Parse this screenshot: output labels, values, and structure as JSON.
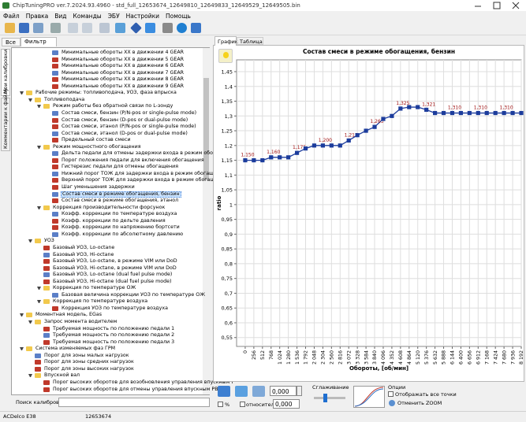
{
  "window": {
    "title": "ChipTuningPRO ver.7.2024.93.4960 - std_full_12653674_12649810_12649833_12649529_12649505.bin"
  },
  "menu": [
    "Файл",
    "Правка",
    "Вид",
    "Команды",
    "ЭБУ",
    "Настройки",
    "Помощь"
  ],
  "left_tabs": [
    "Все",
    "Фильтр"
  ],
  "side_tabs": [
    "Мои калибровки",
    "Комментарии к файлу"
  ],
  "tree": [
    {
      "level": 3,
      "label": "Минимальные обороты ХХ в движении 4 GEAR"
    },
    {
      "level": 3,
      "label": "Минимальные обороты ХХ в движении 5 GEAR"
    },
    {
      "level": 3,
      "label": "Минимальные обороты ХХ в движении 6 GEAR"
    },
    {
      "level": 3,
      "label": "Минимальные обороты ХХ в движении 7 GEAR"
    },
    {
      "level": 3,
      "label": "Минимальные обороты ХХ в движении 8 GEAR"
    },
    {
      "level": 3,
      "label": "Минимальные обороты ХХ в движении 9 GEAR"
    },
    {
      "level": 0,
      "label": "Рабочие режимы: топливоподача, УОЗ, фаза впрыска"
    },
    {
      "level": 1,
      "label": "Топливоподача"
    },
    {
      "level": 2,
      "label": "Режим работы без обратной связи по L-зонду"
    },
    {
      "level": 3,
      "label": "Состав смеси, бензин (P/N-pos or single-pulse mode)"
    },
    {
      "level": 3,
      "label": "Состав смеси, бензин (D-pos or dual-pulse mode)"
    },
    {
      "level": 3,
      "label": "Состав смеси, этанол (P/N-pos or single-pulse mode)"
    },
    {
      "level": 3,
      "label": "Состав смеси, этанол (D-pos or dual-pulse mode)"
    },
    {
      "level": 3,
      "label": "Предельный состав смеси"
    },
    {
      "level": 2,
      "label": "Режим мощностного обогащения"
    },
    {
      "level": 3,
      "label": "Дельта педали для отмены задержки входа в режим обогащени"
    },
    {
      "level": 3,
      "label": "Порог положения педали для включения обогащения"
    },
    {
      "level": 3,
      "label": "Гистерезис педали для отмены обогащения"
    },
    {
      "level": 3,
      "label": "Нижний порог ТОЖ для задержки входа в режим обогащения"
    },
    {
      "level": 3,
      "label": "Верхний порог ТОЖ для задержки входа в режим обогащения"
    },
    {
      "level": 3,
      "label": "Шаг уменьшения задержки"
    },
    {
      "level": 3,
      "label": "Состав смеси в режиме обогащения, бензин",
      "selected": true
    },
    {
      "level": 3,
      "label": "Состав смеси в режиме обогащения, этанол"
    },
    {
      "level": 2,
      "label": "Коррекция производительности форсунок"
    },
    {
      "level": 3,
      "label": "Коэфф. коррекции по температуре воздуха"
    },
    {
      "level": 3,
      "label": "Коэфф. коррекции по дельте давления"
    },
    {
      "level": 3,
      "label": "Коэфф. коррекции по напряжению бортсети"
    },
    {
      "level": 3,
      "label": "Коэфф. коррекции по абсолютному давлению"
    },
    {
      "level": 1,
      "label": "УОЗ"
    },
    {
      "level": 2,
      "label": "Базовый УОЗ, Lo-octane"
    },
    {
      "level": 2,
      "label": "Базовый УОЗ, Hi-octane"
    },
    {
      "level": 2,
      "label": "Базовый УОЗ, Lo-octane, в режиме VIM или DoD"
    },
    {
      "level": 2,
      "label": "Базовый УОЗ, Hi-octane, в режиме VIM или DoD"
    },
    {
      "level": 2,
      "label": "Базовый УОЗ, Lo-octane (dual fuel pulse mode)"
    },
    {
      "level": 2,
      "label": "Базовый УОЗ, Hi-octane (dual fuel pulse mode)"
    },
    {
      "level": 2,
      "label": "Коррекция по температуре ОЖ"
    },
    {
      "level": 3,
      "label": "Базовая величина коррекции УОЗ по температуре ОЖ"
    },
    {
      "level": 2,
      "label": "Коррекция по температуре воздуха"
    },
    {
      "level": 3,
      "label": "Коррекция УОЗ по температуре воздуха"
    },
    {
      "level": 0,
      "label": "Моментная модель, EGas"
    },
    {
      "level": 1,
      "label": "Запрос момента водителем"
    },
    {
      "level": 2,
      "label": "Требуемая мощность по положению педали 1"
    },
    {
      "level": 2,
      "label": "Требуемая мощность по положению педали 2"
    },
    {
      "level": 2,
      "label": "Требуемая мощность по положению педали 3"
    },
    {
      "level": 0,
      "label": "Система изменяемых фаз ГРМ"
    },
    {
      "level": 1,
      "label": "Порог для зоны малых нагрузок"
    },
    {
      "level": 1,
      "label": "Порог для зоны средних нагрузок"
    },
    {
      "level": 1,
      "label": "Порог для зоны высоких нагрузок"
    },
    {
      "level": 1,
      "label": "Впускной вал"
    },
    {
      "level": 2,
      "label": "Порог высоких оборотов для возобновления управления впускным Р"
    },
    {
      "level": 2,
      "label": "Порог высоких оборотов для отмены управления впускным РВ"
    }
  ],
  "search_label": "Поиск калибровки",
  "status": [
    "ACDelco E38",
    "12653674"
  ],
  "right_tabs": [
    "График",
    "Таблица"
  ],
  "controls": {
    "value_input": "0,000",
    "percent": "%",
    "relative": "относительно",
    "relative_input": "0,000",
    "smoothing": "Сглаживание",
    "options": "Опции",
    "show_all_points": "Отображать все точки",
    "reset_zoom": "Отменить ZOOM"
  },
  "chart_data": {
    "type": "line",
    "title": "Состав смеси в режиме обогащения, бензин",
    "x_label": "Обороты, [об/мин]",
    "y_label": "ratio",
    "grid": true,
    "x": [
      0,
      256,
      512,
      768,
      1024,
      1280,
      1536,
      1792,
      2048,
      2304,
      2560,
      2816,
      3072,
      3328,
      3584,
      3840,
      4096,
      4352,
      4608,
      4864,
      5120,
      5376,
      5632,
      5888,
      6144,
      6400,
      6656,
      6912,
      7168,
      7424,
      7680,
      7936,
      8192
    ],
    "series": [
      {
        "color": "#1c3c9c",
        "values": [
          1.15,
          1.15,
          1.15,
          1.16,
          1.16,
          1.16,
          1.175,
          1.19,
          1.2,
          1.2,
          1.2,
          1.2,
          1.217,
          1.235,
          1.25,
          1.263,
          1.29,
          1.3,
          1.325,
          1.33,
          1.33,
          1.321,
          1.31,
          1.31,
          1.31,
          1.31,
          1.31,
          1.31,
          1.31,
          1.31,
          1.31,
          1.31,
          1.31
        ],
        "value_labels": [
          "1,150",
          null,
          null,
          "1,160",
          null,
          null,
          "1,175",
          null,
          null,
          "1,200",
          null,
          null,
          "1,217",
          null,
          null,
          "1,263",
          null,
          null,
          "1,325",
          null,
          null,
          "1,321",
          null,
          null,
          "1,310",
          null,
          null,
          "1,310",
          null,
          null,
          "1,310",
          null,
          null
        ]
      }
    ],
    "xlim": [
      -256,
      8192
    ],
    "ylim": [
      0.52,
      1.49
    ],
    "xticks": [
      0,
      256,
      512,
      768,
      {
        "value": 1024,
        "label": "1 024"
      },
      {
        "value": 1280,
        "label": "1 280"
      },
      {
        "value": 1536,
        "label": "1 536"
      },
      {
        "value": 1792,
        "label": "1 792"
      },
      {
        "value": 2048,
        "label": "2 048"
      },
      {
        "value": 2304,
        "label": "2 304"
      },
      {
        "value": 2560,
        "label": "2 560"
      },
      {
        "value": 2816,
        "label": "2 816"
      },
      {
        "value": 3072,
        "label": "3 072"
      },
      {
        "value": 3328,
        "label": "3 328"
      },
      {
        "value": 3584,
        "label": "3 584"
      },
      {
        "value": 3840,
        "label": "3 840"
      },
      {
        "value": 4096,
        "label": "4 096"
      },
      {
        "value": 4352,
        "label": "4 352"
      },
      {
        "value": 4608,
        "label": "4 608"
      },
      {
        "value": 4864,
        "label": "4 864"
      },
      {
        "value": 5120,
        "label": "5 120"
      },
      {
        "value": 5376,
        "label": "5 376"
      },
      {
        "value": 5632,
        "label": "5 632"
      },
      {
        "value": 5888,
        "label": "5 888"
      },
      {
        "value": 6144,
        "label": "6 144"
      },
      {
        "value": 6400,
        "label": "6 400"
      },
      {
        "value": 6656,
        "label": "6 656"
      },
      {
        "value": 6912,
        "label": "6 912"
      },
      {
        "value": 7168,
        "label": "7 168"
      },
      {
        "value": 7424,
        "label": "7 424"
      },
      {
        "value": 7680,
        "label": "7 680"
      },
      {
        "value": 7936,
        "label": "7 936"
      },
      {
        "value": 8192,
        "label": "8 192"
      }
    ],
    "yticks": [
      {
        "value": 0.55,
        "label": "0,55"
      },
      {
        "value": 0.6,
        "label": "0,6"
      },
      {
        "value": 0.65,
        "label": "0,65"
      },
      {
        "value": 0.7,
        "label": "0,7"
      },
      {
        "value": 0.75,
        "label": "0,75"
      },
      {
        "value": 0.8,
        "label": "0,8"
      },
      {
        "value": 0.85,
        "label": "0,85"
      },
      {
        "value": 0.9,
        "label": "0,9"
      },
      {
        "value": 0.95,
        "label": "0,95"
      },
      1,
      {
        "value": 1.05,
        "label": "1,05"
      },
      {
        "value": 1.1,
        "label": "1,1"
      },
      {
        "value": 1.15,
        "label": "1,15"
      },
      {
        "value": 1.2,
        "label": "1,2"
      },
      {
        "value": 1.25,
        "label": "1,25"
      },
      {
        "value": 1.3,
        "label": "1,3"
      },
      {
        "value": 1.35,
        "label": "1,35"
      },
      {
        "value": 1.4,
        "label": "1,4"
      },
      {
        "value": 1.45,
        "label": "1,45"
      }
    ]
  }
}
